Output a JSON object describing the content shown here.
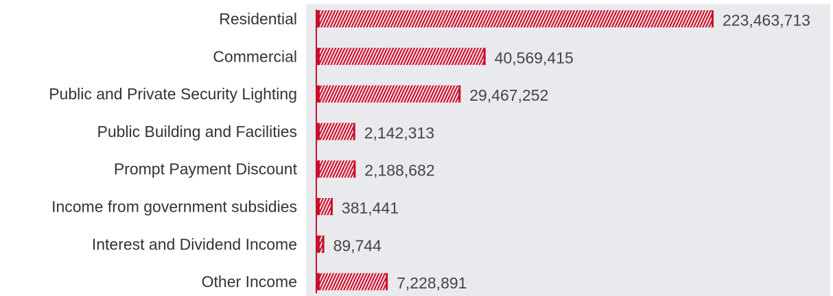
{
  "chart_data": {
    "type": "bar",
    "orientation": "horizontal",
    "title": "",
    "xlabel": "",
    "ylabel": "",
    "categories": [
      "Residential",
      "Commercial",
      "Public and Private Security Lighting",
      "Public Building and Facilities",
      "Prompt Payment Discount",
      "Income from government subsidies",
      "Interest and Dividend Income",
      "Other Income"
    ],
    "values": [
      223463713,
      40569415,
      29467252,
      2142313,
      2188682,
      381441,
      89744,
      7228891
    ],
    "value_labels": [
      "223,463,713",
      "40,569,415",
      "29,467,252",
      "2,142,313",
      "2,188,682",
      "381,441",
      "89,744",
      "7,228,891"
    ],
    "scale": "sqrt",
    "grid": false,
    "legend": "none",
    "colors": {
      "bar": "#c8102e",
      "plot_background": "#e8eaed",
      "axis": "#c8102e"
    }
  }
}
